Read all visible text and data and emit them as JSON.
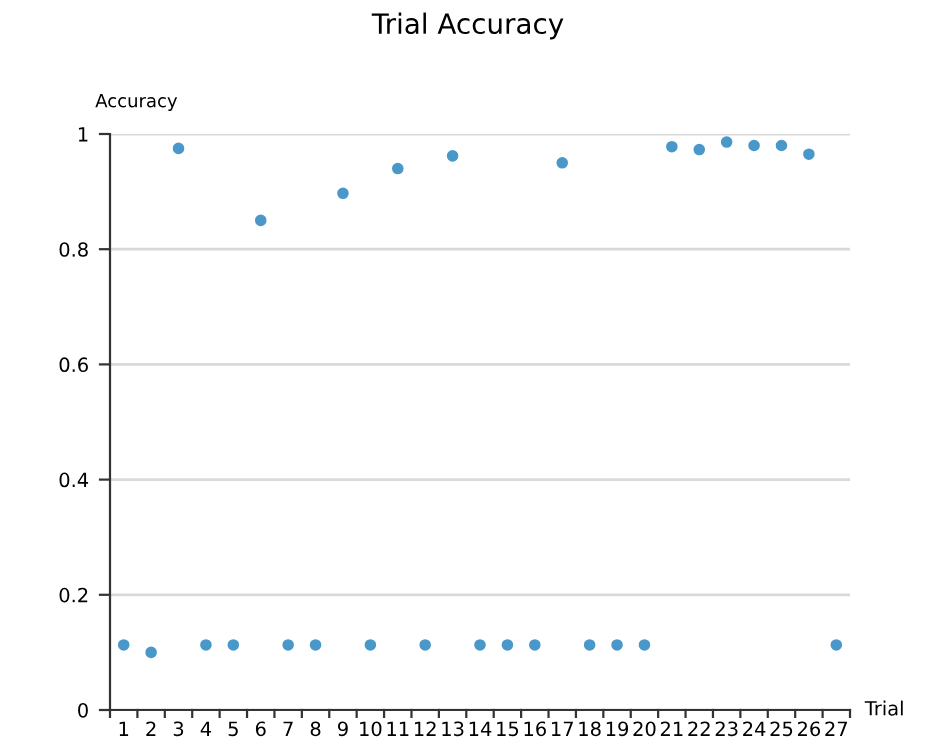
{
  "chart_data": {
    "type": "scatter",
    "title": "Trial Accuracy",
    "xlabel": "Trial",
    "ylabel": "Accuracy",
    "categories": [
      "1",
      "2",
      "3",
      "4",
      "5",
      "6",
      "7",
      "8",
      "9",
      "10",
      "11",
      "12",
      "13",
      "14",
      "15",
      "16",
      "17",
      "18",
      "19",
      "20",
      "21",
      "22",
      "23",
      "24",
      "25",
      "26",
      "27"
    ],
    "series": [
      {
        "color": "#4a98c9",
        "values": [
          0.113,
          0.1,
          0.975,
          0.113,
          0.113,
          0.85,
          0.113,
          0.113,
          0.897,
          0.113,
          0.94,
          0.113,
          0.962,
          0.113,
          0.113,
          0.113,
          0.95,
          0.113,
          0.113,
          0.113,
          0.978,
          0.973,
          0.986,
          0.98,
          0.98,
          0.965,
          0.113
        ]
      }
    ],
    "ylim": [
      0,
      1
    ],
    "yticks": [
      0,
      0.2,
      0.4,
      0.6,
      0.8,
      1
    ],
    "grid": "y",
    "marker": "circle",
    "legend": false
  }
}
